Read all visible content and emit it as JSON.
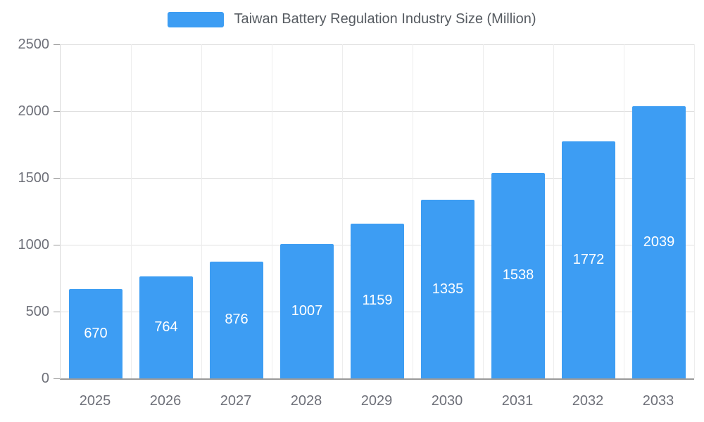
{
  "chart_data": {
    "type": "bar",
    "title": "Taiwan Battery Regulation Industry Size (Million)",
    "categories": [
      "2025",
      "2026",
      "2027",
      "2028",
      "2029",
      "2030",
      "2031",
      "2032",
      "2033"
    ],
    "values": [
      670,
      764,
      876,
      1007,
      1159,
      1335,
      1538,
      1772,
      2039
    ],
    "xlabel": "",
    "ylabel": "",
    "ylim": [
      0,
      2500
    ],
    "yticks": [
      0,
      500,
      1000,
      1500,
      2000,
      2500
    ],
    "grid": true,
    "legend_position": "top-center",
    "bar_color": "#3D9DF3",
    "value_label_color": "#ffffff"
  }
}
